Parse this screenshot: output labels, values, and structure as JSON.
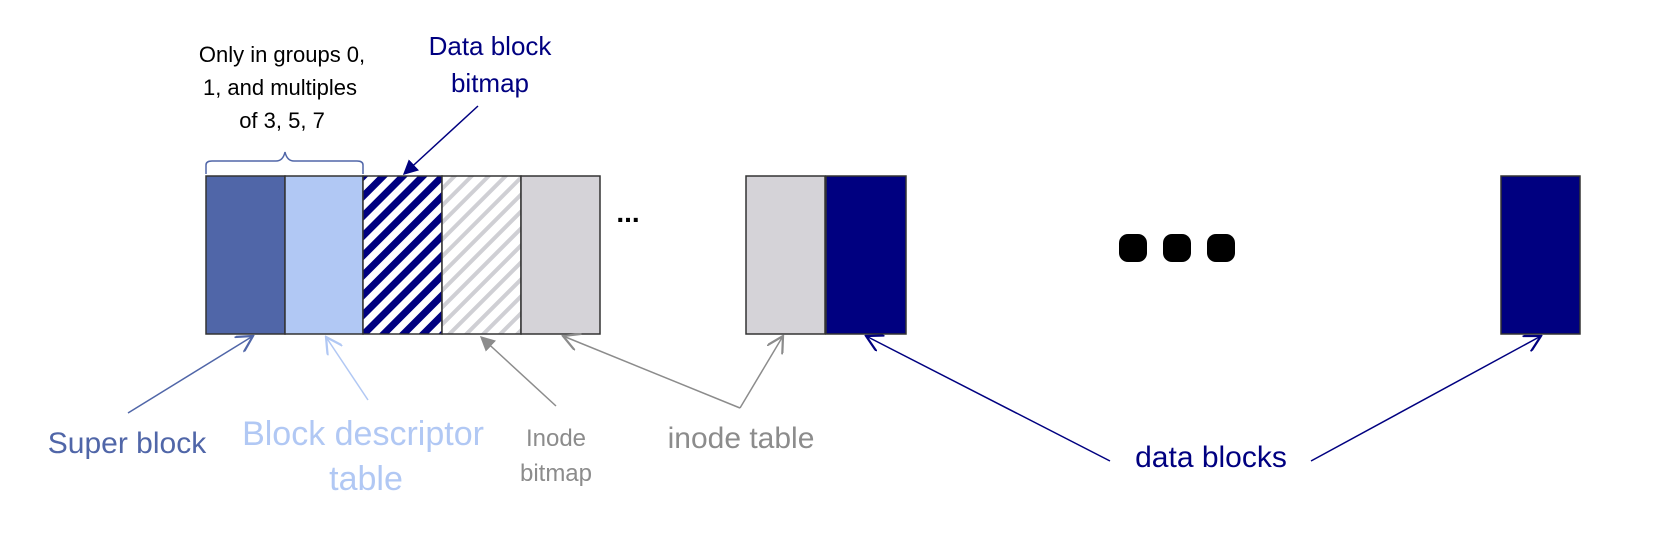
{
  "note": {
    "lines": [
      "Only in groups 0,",
      "1, and multiples",
      "of 3, 5, 7"
    ]
  },
  "labels": {
    "data_block_bitmap": [
      "Data block",
      "bitmap"
    ],
    "super_block": "Super block",
    "block_descriptor_table": [
      "Block descriptor",
      "table"
    ],
    "inode_bitmap": [
      "Inode",
      "bitmap"
    ],
    "inode_table": "inode table",
    "data_blocks": "data blocks",
    "small_ellipsis": "...",
    "large_ellipsis": "●●●"
  },
  "colors": {
    "super_block": "#5066a8",
    "block_descriptor_table": "#b1c8f4",
    "data_block_bitmap_stripe": "#000080",
    "inode_bitmap_stripe": "#cfcfd4",
    "inode_table": "#d5d3d8",
    "data_block": "#000080",
    "note_text": "#000000",
    "inode_label": "#8c8c8c",
    "block_border": "#333333"
  }
}
